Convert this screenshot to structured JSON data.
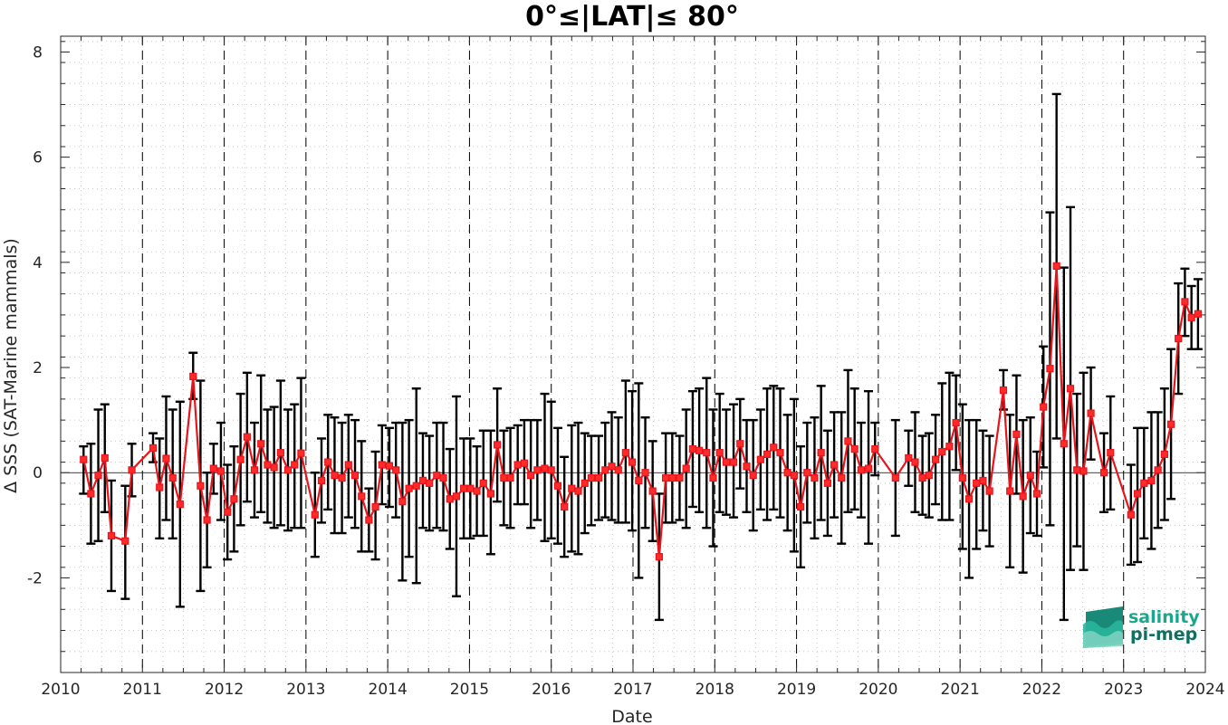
{
  "chart_data": {
    "type": "line",
    "title": "0°≤|LAT|≤ 80°",
    "xlabel": "Date",
    "ylabel": "Δ SSS (SAT-Marine mammals)",
    "xlim": [
      2010,
      2024
    ],
    "ylim": [
      -3.8,
      8.3
    ],
    "x_ticks": [
      2010,
      2011,
      2012,
      2013,
      2014,
      2015,
      2016,
      2017,
      2018,
      2019,
      2020,
      2021,
      2022,
      2023,
      2024
    ],
    "y_ticks": [
      -2,
      0,
      2,
      4,
      6,
      8
    ],
    "grid": "dotted minor grid; dashed vertical lines at each year",
    "series": [
      {
        "color": "#e8141b",
        "marker": "square",
        "error_bar_color": "#000000",
        "points": [
          {
            "x": 2010.28,
            "y": 0.25,
            "lo": -0.4,
            "hi": 0.5
          },
          {
            "x": 2010.37,
            "y": -0.4,
            "lo": -1.35,
            "hi": 0.55
          },
          {
            "x": 2010.46,
            "y": -0.05,
            "lo": -1.3,
            "hi": 1.2
          },
          {
            "x": 2010.54,
            "y": 0.28,
            "lo": -0.75,
            "hi": 1.3
          },
          {
            "x": 2010.62,
            "y": -1.2,
            "lo": -2.25,
            "hi": -0.15
          },
          {
            "x": 2010.79,
            "y": -1.3,
            "lo": -2.4,
            "hi": -0.25
          },
          {
            "x": 2010.87,
            "y": 0.05,
            "lo": -0.45,
            "hi": 0.55
          },
          {
            "x": 2011.13,
            "y": 0.47,
            "lo": 0.2,
            "hi": 0.75
          },
          {
            "x": 2011.21,
            "y": -0.28,
            "lo": -1.25,
            "hi": 0.65
          },
          {
            "x": 2011.29,
            "y": 0.27,
            "lo": -0.9,
            "hi": 1.45
          },
          {
            "x": 2011.37,
            "y": -0.1,
            "lo": -1.25,
            "hi": 1.2
          },
          {
            "x": 2011.46,
            "y": -0.6,
            "lo": -2.55,
            "hi": 1.35
          },
          {
            "x": 2011.62,
            "y": 1.83,
            "lo": 1.4,
            "hi": 2.28
          },
          {
            "x": 2011.71,
            "y": -0.25,
            "lo": -2.25,
            "hi": 1.75
          },
          {
            "x": 2011.79,
            "y": -0.9,
            "lo": -1.8,
            "hi": 0.0
          },
          {
            "x": 2011.87,
            "y": 0.08,
            "lo": -0.4,
            "hi": 0.55
          },
          {
            "x": 2011.96,
            "y": 0.03,
            "lo": -0.9,
            "hi": 0.95
          },
          {
            "x": 2012.04,
            "y": -0.75,
            "lo": -1.65,
            "hi": 0.15
          },
          {
            "x": 2012.12,
            "y": -0.5,
            "lo": -1.5,
            "hi": 0.5
          },
          {
            "x": 2012.2,
            "y": 0.25,
            "lo": -1.0,
            "hi": 1.5
          },
          {
            "x": 2012.28,
            "y": 0.68,
            "lo": -0.55,
            "hi": 1.9
          },
          {
            "x": 2012.37,
            "y": 0.05,
            "lo": -0.85,
            "hi": 0.95
          },
          {
            "x": 2012.45,
            "y": 0.55,
            "lo": -0.75,
            "hi": 1.85
          },
          {
            "x": 2012.53,
            "y": 0.15,
            "lo": -0.95,
            "hi": 1.2
          },
          {
            "x": 2012.61,
            "y": 0.1,
            "lo": -1.05,
            "hi": 1.25
          },
          {
            "x": 2012.69,
            "y": 0.38,
            "lo": -1.0,
            "hi": 1.75
          },
          {
            "x": 2012.78,
            "y": 0.05,
            "lo": -1.1,
            "hi": 1.2
          },
          {
            "x": 2012.86,
            "y": 0.15,
            "lo": -1.05,
            "hi": 1.3
          },
          {
            "x": 2012.94,
            "y": 0.37,
            "lo": -1.05,
            "hi": 1.8
          },
          {
            "x": 2013.11,
            "y": -0.8,
            "lo": -1.6,
            "hi": 0.0
          },
          {
            "x": 2013.19,
            "y": -0.15,
            "lo": -0.95,
            "hi": 0.65
          },
          {
            "x": 2013.27,
            "y": 0.2,
            "lo": -0.7,
            "hi": 1.1
          },
          {
            "x": 2013.35,
            "y": -0.05,
            "lo": -1.15,
            "hi": 1.05
          },
          {
            "x": 2013.44,
            "y": -0.1,
            "lo": -1.15,
            "hi": 0.95
          },
          {
            "x": 2013.52,
            "y": 0.15,
            "lo": -0.85,
            "hi": 1.1
          },
          {
            "x": 2013.6,
            "y": -0.05,
            "lo": -1.05,
            "hi": 1.0
          },
          {
            "x": 2013.68,
            "y": -0.45,
            "lo": -1.5,
            "hi": 0.6
          },
          {
            "x": 2013.77,
            "y": -0.9,
            "lo": -1.5,
            "hi": -0.3
          },
          {
            "x": 2013.85,
            "y": -0.65,
            "lo": -1.65,
            "hi": 0.4
          },
          {
            "x": 2013.93,
            "y": 0.15,
            "lo": -0.6,
            "hi": 0.9
          },
          {
            "x": 2014.02,
            "y": 0.13,
            "lo": -0.65,
            "hi": 0.85
          },
          {
            "x": 2014.1,
            "y": 0.05,
            "lo": -0.85,
            "hi": 0.95
          },
          {
            "x": 2014.18,
            "y": -0.55,
            "lo": -2.05,
            "hi": 0.95
          },
          {
            "x": 2014.26,
            "y": -0.3,
            "lo": -1.6,
            "hi": 1.0
          },
          {
            "x": 2014.35,
            "y": -0.25,
            "lo": -2.1,
            "hi": 1.6
          },
          {
            "x": 2014.43,
            "y": -0.15,
            "lo": -1.05,
            "hi": 0.75
          },
          {
            "x": 2014.51,
            "y": -0.2,
            "lo": -1.1,
            "hi": 0.7
          },
          {
            "x": 2014.6,
            "y": -0.05,
            "lo": -1.05,
            "hi": 0.95
          },
          {
            "x": 2014.68,
            "y": -0.1,
            "lo": -1.1,
            "hi": 0.95
          },
          {
            "x": 2014.76,
            "y": -0.5,
            "lo": -1.45,
            "hi": 0.45
          },
          {
            "x": 2014.84,
            "y": -0.45,
            "lo": -2.35,
            "hi": 1.45
          },
          {
            "x": 2014.93,
            "y": -0.3,
            "lo": -1.25,
            "hi": 0.65
          },
          {
            "x": 2015.01,
            "y": -0.3,
            "lo": -1.25,
            "hi": 0.65
          },
          {
            "x": 2015.09,
            "y": -0.35,
            "lo": -1.2,
            "hi": 0.5
          },
          {
            "x": 2015.17,
            "y": -0.2,
            "lo": -1.2,
            "hi": 0.8
          },
          {
            "x": 2015.26,
            "y": -0.4,
            "lo": -1.55,
            "hi": 0.8
          },
          {
            "x": 2015.34,
            "y": 0.53,
            "lo": -0.55,
            "hi": 1.6
          },
          {
            "x": 2015.42,
            "y": -0.1,
            "lo": -1.0,
            "hi": 0.8
          },
          {
            "x": 2015.5,
            "y": -0.1,
            "lo": -1.05,
            "hi": 0.85
          },
          {
            "x": 2015.59,
            "y": 0.15,
            "lo": -0.6,
            "hi": 0.9
          },
          {
            "x": 2015.67,
            "y": 0.18,
            "lo": -0.6,
            "hi": 1.0
          },
          {
            "x": 2015.75,
            "y": -0.05,
            "lo": -1.05,
            "hi": 1.0
          },
          {
            "x": 2015.83,
            "y": 0.05,
            "lo": -0.9,
            "hi": 1.0
          },
          {
            "x": 2015.92,
            "y": 0.08,
            "lo": -1.3,
            "hi": 1.5
          },
          {
            "x": 2016.0,
            "y": 0.05,
            "lo": -1.25,
            "hi": 1.35
          },
          {
            "x": 2016.08,
            "y": -0.25,
            "lo": -1.35,
            "hi": 0.85
          },
          {
            "x": 2016.16,
            "y": -0.65,
            "lo": -1.6,
            "hi": 0.3
          },
          {
            "x": 2016.25,
            "y": -0.3,
            "lo": -1.5,
            "hi": 0.9
          },
          {
            "x": 2016.33,
            "y": -0.35,
            "lo": -1.55,
            "hi": 0.95
          },
          {
            "x": 2016.41,
            "y": -0.2,
            "lo": -1.15,
            "hi": 0.75
          },
          {
            "x": 2016.49,
            "y": -0.1,
            "lo": -1.0,
            "hi": 0.7
          },
          {
            "x": 2016.58,
            "y": -0.1,
            "lo": -0.9,
            "hi": 0.7
          },
          {
            "x": 2016.66,
            "y": 0.05,
            "lo": -0.85,
            "hi": 0.95
          },
          {
            "x": 2016.74,
            "y": 0.12,
            "lo": -0.9,
            "hi": 1.15
          },
          {
            "x": 2016.82,
            "y": 0.05,
            "lo": -0.95,
            "hi": 1.05
          },
          {
            "x": 2016.91,
            "y": 0.38,
            "lo": -0.95,
            "hi": 1.75
          },
          {
            "x": 2016.99,
            "y": 0.2,
            "lo": -1.1,
            "hi": 1.55
          },
          {
            "x": 2017.07,
            "y": -0.15,
            "lo": -2.0,
            "hi": 1.7
          },
          {
            "x": 2017.15,
            "y": 0.0,
            "lo": -1.05,
            "hi": 1.05
          },
          {
            "x": 2017.24,
            "y": -0.35,
            "lo": -1.3,
            "hi": 0.6
          },
          {
            "x": 2017.32,
            "y": -1.6,
            "lo": -2.8,
            "hi": -0.4
          },
          {
            "x": 2017.4,
            "y": -0.1,
            "lo": -0.95,
            "hi": 0.75
          },
          {
            "x": 2017.48,
            "y": -0.1,
            "lo": -0.95,
            "hi": 0.75
          },
          {
            "x": 2017.57,
            "y": -0.1,
            "lo": -0.9,
            "hi": 0.7
          },
          {
            "x": 2017.65,
            "y": 0.08,
            "lo": -1.05,
            "hi": 1.2
          },
          {
            "x": 2017.73,
            "y": 0.45,
            "lo": -0.65,
            "hi": 1.55
          },
          {
            "x": 2017.81,
            "y": 0.42,
            "lo": -0.75,
            "hi": 1.6
          },
          {
            "x": 2017.9,
            "y": 0.38,
            "lo": -1.05,
            "hi": 1.8
          },
          {
            "x": 2017.98,
            "y": -0.1,
            "lo": -1.4,
            "hi": 1.2
          },
          {
            "x": 2018.06,
            "y": 0.38,
            "lo": -0.75,
            "hi": 1.5
          },
          {
            "x": 2018.14,
            "y": 0.2,
            "lo": -0.8,
            "hi": 1.2
          },
          {
            "x": 2018.23,
            "y": 0.2,
            "lo": -0.85,
            "hi": 1.3
          },
          {
            "x": 2018.31,
            "y": 0.55,
            "lo": -0.3,
            "hi": 1.4
          },
          {
            "x": 2018.39,
            "y": 0.12,
            "lo": -0.75,
            "hi": 1.0
          },
          {
            "x": 2018.47,
            "y": -0.05,
            "lo": -1.1,
            "hi": 1.0
          },
          {
            "x": 2018.56,
            "y": 0.25,
            "lo": -0.7,
            "hi": 1.2
          },
          {
            "x": 2018.64,
            "y": 0.35,
            "lo": -0.9,
            "hi": 1.6
          },
          {
            "x": 2018.72,
            "y": 0.48,
            "lo": -0.7,
            "hi": 1.65
          },
          {
            "x": 2018.8,
            "y": 0.38,
            "lo": -0.85,
            "hi": 1.6
          },
          {
            "x": 2018.89,
            "y": 0.0,
            "lo": -1.1,
            "hi": 1.1
          },
          {
            "x": 2018.97,
            "y": -0.05,
            "lo": -1.5,
            "hi": 1.4
          },
          {
            "x": 2019.05,
            "y": -0.65,
            "lo": -1.8,
            "hi": 0.5
          },
          {
            "x": 2019.13,
            "y": 0.0,
            "lo": -0.95,
            "hi": 0.95
          },
          {
            "x": 2019.22,
            "y": -0.1,
            "lo": -1.25,
            "hi": 1.05
          },
          {
            "x": 2019.3,
            "y": 0.38,
            "lo": -0.9,
            "hi": 1.65
          },
          {
            "x": 2019.38,
            "y": -0.2,
            "lo": -1.2,
            "hi": 0.8
          },
          {
            "x": 2019.46,
            "y": 0.15,
            "lo": -0.85,
            "hi": 1.15
          },
          {
            "x": 2019.55,
            "y": -0.1,
            "lo": -1.35,
            "hi": 1.15
          },
          {
            "x": 2019.63,
            "y": 0.6,
            "lo": -0.75,
            "hi": 1.95
          },
          {
            "x": 2019.71,
            "y": 0.45,
            "lo": -0.7,
            "hi": 1.6
          },
          {
            "x": 2019.79,
            "y": 0.05,
            "lo": -0.85,
            "hi": 0.95
          },
          {
            "x": 2019.88,
            "y": 0.08,
            "lo": -1.35,
            "hi": 1.55
          },
          {
            "x": 2019.96,
            "y": 0.45,
            "lo": -0.05,
            "hi": 0.95
          },
          {
            "x": 2020.21,
            "y": -0.1,
            "lo": -1.2,
            "hi": 1.0
          },
          {
            "x": 2020.37,
            "y": 0.28,
            "lo": -0.25,
            "hi": 0.8
          },
          {
            "x": 2020.45,
            "y": 0.2,
            "lo": -0.75,
            "hi": 1.15
          },
          {
            "x": 2020.54,
            "y": -0.1,
            "lo": -0.8,
            "hi": 0.7
          },
          {
            "x": 2020.62,
            "y": -0.05,
            "lo": -0.85,
            "hi": 0.75
          },
          {
            "x": 2020.7,
            "y": 0.25,
            "lo": -0.6,
            "hi": 1.1
          },
          {
            "x": 2020.78,
            "y": 0.4,
            "lo": -0.9,
            "hi": 1.7
          },
          {
            "x": 2020.87,
            "y": 0.5,
            "lo": -0.9,
            "hi": 1.9
          },
          {
            "x": 2020.95,
            "y": 0.95,
            "lo": 0.05,
            "hi": 1.85
          },
          {
            "x": 2021.03,
            "y": -0.1,
            "lo": -1.45,
            "hi": 1.3
          },
          {
            "x": 2021.11,
            "y": -0.5,
            "lo": -2.0,
            "hi": 1.0
          },
          {
            "x": 2021.2,
            "y": -0.2,
            "lo": -1.45,
            "hi": 1.0
          },
          {
            "x": 2021.28,
            "y": -0.15,
            "lo": -1.1,
            "hi": 0.8
          },
          {
            "x": 2021.36,
            "y": -0.35,
            "lo": -1.4,
            "hi": 0.7
          },
          {
            "x": 2021.53,
            "y": 1.57,
            "lo": 1.2,
            "hi": 1.95
          },
          {
            "x": 2021.61,
            "y": -0.35,
            "lo": -1.8,
            "hi": 1.1
          },
          {
            "x": 2021.69,
            "y": 0.73,
            "lo": -0.4,
            "hi": 1.85
          },
          {
            "x": 2021.77,
            "y": -0.45,
            "lo": -1.9,
            "hi": 1.0
          },
          {
            "x": 2021.86,
            "y": -0.05,
            "lo": -1.15,
            "hi": 1.05
          },
          {
            "x": 2021.94,
            "y": -0.4,
            "lo": -1.2,
            "hi": 0.4
          },
          {
            "x": 2022.02,
            "y": 1.25,
            "lo": 0.1,
            "hi": 2.4
          },
          {
            "x": 2022.1,
            "y": 1.98,
            "lo": -1.0,
            "hi": 4.95
          },
          {
            "x": 2022.18,
            "y": 3.93,
            "lo": 0.65,
            "hi": 7.2
          },
          {
            "x": 2022.27,
            "y": 0.55,
            "lo": -2.8,
            "hi": 3.9
          },
          {
            "x": 2022.35,
            "y": 1.6,
            "lo": -1.85,
            "hi": 5.05
          },
          {
            "x": 2022.43,
            "y": 0.05,
            "lo": -1.4,
            "hi": 1.5
          },
          {
            "x": 2022.51,
            "y": 0.03,
            "lo": -1.85,
            "hi": 1.9
          },
          {
            "x": 2022.6,
            "y": 1.13,
            "lo": 0.25,
            "hi": 2.0
          },
          {
            "x": 2022.76,
            "y": 0.0,
            "lo": -0.75,
            "hi": 0.75
          },
          {
            "x": 2022.84,
            "y": 0.38,
            "lo": -0.7,
            "hi": 1.45
          },
          {
            "x": 2023.09,
            "y": -0.8,
            "lo": -1.75,
            "hi": 0.15
          },
          {
            "x": 2023.17,
            "y": -0.4,
            "lo": -1.7,
            "hi": 0.85
          },
          {
            "x": 2023.25,
            "y": -0.2,
            "lo": -1.25,
            "hi": 0.85
          },
          {
            "x": 2023.34,
            "y": -0.15,
            "lo": -1.45,
            "hi": 1.15
          },
          {
            "x": 2023.42,
            "y": 0.05,
            "lo": -1.05,
            "hi": 1.15
          },
          {
            "x": 2023.5,
            "y": 0.35,
            "lo": -0.9,
            "hi": 1.6
          },
          {
            "x": 2023.58,
            "y": 0.92,
            "lo": -0.5,
            "hi": 2.35
          },
          {
            "x": 2023.67,
            "y": 2.55,
            "lo": 1.5,
            "hi": 3.6
          },
          {
            "x": 2023.75,
            "y": 3.25,
            "lo": 2.6,
            "hi": 3.88
          },
          {
            "x": 2023.83,
            "y": 2.95,
            "lo": 2.35,
            "hi": 3.55
          },
          {
            "x": 2023.91,
            "y": 3.02,
            "lo": 2.35,
            "hi": 3.68
          }
        ]
      }
    ]
  },
  "logo": {
    "line1": "salinity",
    "line2": "pi-mep"
  }
}
